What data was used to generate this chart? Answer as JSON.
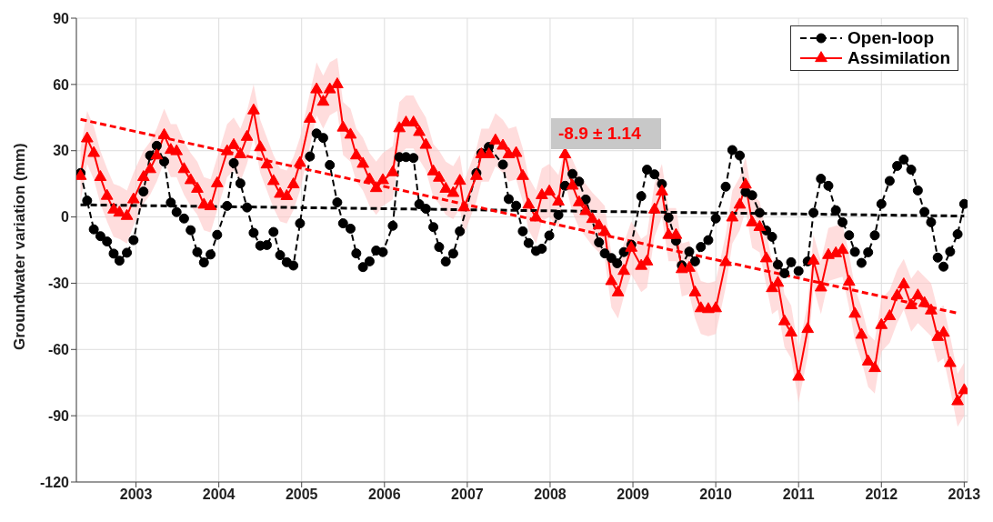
{
  "chart_data": {
    "type": "line",
    "ylabel": "Groundwater variation (mm)",
    "xlim": [
      2002.28,
      2013.04
    ],
    "ylim": [
      -120,
      90
    ],
    "xticks": [
      2003,
      2004,
      2005,
      2006,
      2007,
      2008,
      2009,
      2010,
      2011,
      2012,
      2013
    ],
    "yticks": [
      -120,
      -90,
      -60,
      -30,
      0,
      30,
      60,
      90
    ],
    "grid": true,
    "legend": "top right",
    "annotations": [
      "-8.9 ± 1.14"
    ],
    "series": [
      {
        "name": "Open-loop",
        "color": "#000000",
        "marker": "circle",
        "line_style": "dashed",
        "x": [
          2002.33,
          2002.41,
          2002.49,
          2002.57,
          2002.65,
          2002.73,
          2002.8,
          2002.89,
          2002.97,
          2003.09,
          2003.17,
          2003.25,
          2003.34,
          2003.42,
          2003.49,
          2003.58,
          2003.66,
          2003.74,
          2003.82,
          2003.9,
          2003.98,
          2004.1,
          2004.18,
          2004.26,
          2004.34,
          2004.42,
          2004.5,
          2004.58,
          2004.66,
          2004.74,
          2004.82,
          2004.9,
          2004.98,
          2005.1,
          2005.18,
          2005.26,
          2005.34,
          2005.43,
          2005.5,
          2005.59,
          2005.66,
          2005.74,
          2005.82,
          2005.9,
          2005.98,
          2006.1,
          2006.18,
          2006.26,
          2006.35,
          2006.42,
          2006.5,
          2006.59,
          2006.66,
          2006.74,
          2006.83,
          2006.91,
          2007.11,
          2007.17,
          2007.26,
          2007.43,
          2007.5,
          2007.59,
          2007.67,
          2007.74,
          2007.83,
          2007.9,
          2007.99,
          2008.1,
          2008.18,
          2008.27,
          2008.35,
          2008.43,
          2008.59,
          2008.66,
          2008.74,
          2008.81,
          2008.89,
          2008.98,
          2009.1,
          2009.17,
          2009.26,
          2009.35,
          2009.43,
          2009.52,
          2009.59,
          2009.68,
          2009.75,
          2009.82,
          2009.91,
          2010.0,
          2010.12,
          2010.2,
          2010.29,
          2010.36,
          2010.44,
          2010.53,
          2010.61,
          2010.68,
          2010.75,
          2010.83,
          2010.91,
          2011.0,
          2011.11,
          2011.18,
          2011.27,
          2011.36,
          2011.45,
          2011.53,
          2011.61,
          2011.68,
          2011.76,
          2011.84,
          2011.92,
          2012.0,
          2012.1,
          2012.19,
          2012.27,
          2012.36,
          2012.44,
          2012.52,
          2012.6,
          2012.68,
          2012.75,
          2012.83,
          2012.92,
          2013.0
        ],
        "values": [
          19.9,
          7.4,
          -5.6,
          -8.7,
          -11.1,
          -16.6,
          -19.8,
          -16.2,
          -10.5,
          11.5,
          27.8,
          32.2,
          25.1,
          6.5,
          2.2,
          -0.7,
          -6.0,
          -15.9,
          -20.6,
          -17.0,
          -8.1,
          5.0,
          24.4,
          15.2,
          4.3,
          -7.2,
          -13.0,
          -12.7,
          -6.8,
          -17.3,
          -20.5,
          -22.0,
          -2.9,
          27.4,
          37.8,
          35.8,
          23.5,
          6.6,
          -2.9,
          -5.3,
          -16.5,
          -22.7,
          -20.1,
          -15.2,
          -15.9,
          -4.0,
          27.1,
          27.1,
          26.7,
          5.8,
          3.7,
          -4.6,
          -13.6,
          -20.2,
          -16.6,
          -6.5,
          19.9,
          28.9,
          31.7,
          23.7,
          8.1,
          5.1,
          -6.5,
          -11.8,
          -15.4,
          -14.4,
          -8.4,
          0.9,
          14.1,
          19.5,
          16.0,
          7.9,
          -11.5,
          -16.5,
          -18.6,
          -21.0,
          -15.9,
          -12.6,
          9.4,
          21.4,
          19.3,
          14.9,
          -0.3,
          -10.8,
          -21.9,
          -15.7,
          -20.1,
          -13.6,
          -10.5,
          -0.7,
          13.7,
          30.3,
          27.8,
          11.3,
          9.8,
          1.9,
          -6.1,
          -9.0,
          -21.6,
          -25.5,
          -20.5,
          -24.5,
          -20.1,
          1.9,
          17.3,
          14.1,
          3.0,
          -2.4,
          -8.3,
          -15.8,
          -20.8,
          -16.0,
          -8.3,
          5.9,
          16.3,
          23.1,
          26.0,
          21.4,
          12.0,
          2.3,
          -2.4,
          -18.4,
          -22.5,
          -15.7,
          -7.8,
          5.9
        ]
      },
      {
        "name": "Assimilation",
        "color": "#ff0000",
        "marker": "triangle",
        "line_style": "solid",
        "x": [
          2002.33,
          2002.41,
          2002.49,
          2002.57,
          2002.65,
          2002.73,
          2002.8,
          2002.89,
          2002.97,
          2003.09,
          2003.17,
          2003.25,
          2003.34,
          2003.42,
          2003.49,
          2003.58,
          2003.66,
          2003.74,
          2003.82,
          2003.9,
          2003.98,
          2004.1,
          2004.18,
          2004.26,
          2004.34,
          2004.42,
          2004.5,
          2004.58,
          2004.66,
          2004.74,
          2004.82,
          2004.9,
          2004.98,
          2005.1,
          2005.18,
          2005.26,
          2005.34,
          2005.43,
          2005.5,
          2005.59,
          2005.66,
          2005.74,
          2005.82,
          2005.9,
          2005.98,
          2006.1,
          2006.18,
          2006.26,
          2006.35,
          2006.42,
          2006.5,
          2006.59,
          2006.66,
          2006.74,
          2006.83,
          2006.91,
          2006.96,
          2007.11,
          2007.17,
          2007.26,
          2007.34,
          2007.43,
          2007.5,
          2007.59,
          2007.67,
          2007.74,
          2007.83,
          2007.9,
          2007.99,
          2008.1,
          2008.18,
          2008.27,
          2008.35,
          2008.43,
          2008.51,
          2008.59,
          2008.66,
          2008.74,
          2008.82,
          2008.89,
          2008.98,
          2009.1,
          2009.17,
          2009.26,
          2009.35,
          2009.43,
          2009.52,
          2009.59,
          2009.68,
          2009.75,
          2009.82,
          2009.91,
          2010.0,
          2010.12,
          2010.2,
          2010.29,
          2010.36,
          2010.44,
          2010.53,
          2010.61,
          2010.68,
          2010.75,
          2010.83,
          2010.91,
          2011.0,
          2011.11,
          2011.18,
          2011.27,
          2011.36,
          2011.45,
          2011.53,
          2011.61,
          2011.68,
          2011.76,
          2011.84,
          2011.92,
          2012.0,
          2012.1,
          2012.19,
          2012.27,
          2012.36,
          2012.44,
          2012.52,
          2012.6,
          2012.68,
          2012.75,
          2012.83,
          2012.92,
          2013.0
        ],
        "values": [
          18.5,
          35.5,
          28.9,
          18.0,
          9.5,
          3.3,
          1.9,
          0.4,
          7.9,
          18.0,
          21.6,
          27.8,
          37.0,
          30.3,
          29.7,
          21.6,
          16.6,
          12.7,
          5.5,
          4.8,
          15.2,
          29.7,
          32.5,
          28.3,
          36.2,
          48.2,
          31.5,
          23.7,
          16.2,
          10.4,
          9.4,
          14.7,
          24.4,
          44.4,
          57.7,
          52.1,
          57.7,
          60.0,
          40.4,
          37.2,
          27.8,
          24.0,
          17.0,
          13.0,
          16.6,
          20.2,
          40.1,
          42.7,
          42.7,
          38.4,
          32.6,
          20.6,
          17.7,
          12.7,
          10.8,
          16.3,
          4.3,
          18.5,
          28.3,
          28.3,
          34.6,
          32.2,
          28.3,
          28.9,
          18.5,
          5.5,
          -0.3,
          9.8,
          11.5,
          6.9,
          28.3,
          14.1,
          6.6,
          2.6,
          -1.0,
          -3.9,
          -6.8,
          -29.1,
          -34.2,
          -24.5,
          -14.0,
          -22.2,
          -20.2,
          3.3,
          11.5,
          -8.2,
          -8.2,
          -23.7,
          -23.1,
          -34.2,
          -41.4,
          -41.8,
          -41.4,
          -20.5,
          -0.3,
          5.5,
          14.6,
          -2.5,
          -4.6,
          -18.8,
          -32.3,
          -29.9,
          -47.3,
          -52.4,
          -72.4,
          -50.8,
          -19.8,
          -32.0,
          -17.3,
          -16.5,
          -15.0,
          -29.4,
          -43.9,
          -53.4,
          -65.5,
          -68.5,
          -49.0,
          -45.0,
          -35.6,
          -30.6,
          -40.0,
          -35.6,
          -39.0,
          -42.4,
          -54.4,
          -52.5,
          -66.2,
          -83.5,
          -78.5
        ],
        "upper": [
          31,
          48,
          41,
          30,
          22,
          15,
          14,
          12,
          20,
          30,
          34,
          40,
          49,
          42,
          42,
          34,
          29,
          25,
          18,
          17,
          27,
          42,
          45,
          40,
          48,
          60,
          44,
          36,
          28,
          22,
          21,
          27,
          36,
          56,
          70,
          64,
          70,
          72,
          52,
          49,
          40,
          36,
          29,
          25,
          29,
          32,
          52,
          55,
          55,
          50,
          45,
          33,
          30,
          25,
          23,
          28,
          16,
          31,
          40,
          40,
          47,
          44,
          40,
          41,
          31,
          18,
          12,
          22,
          24,
          19,
          31,
          26,
          19,
          15,
          11,
          8,
          5,
          -17,
          -22,
          -12,
          -2,
          -10,
          -8,
          15,
          24,
          4,
          4,
          -12,
          -11,
          -22,
          -29,
          -30,
          -29,
          -8,
          12,
          18,
          27,
          10,
          7,
          -7,
          -20,
          -18,
          -35,
          -40,
          -60,
          -39,
          -8,
          -20,
          -5,
          -4,
          -3,
          -17,
          -32,
          -41,
          -53,
          -56,
          -37,
          -33,
          -24,
          -19,
          -28,
          -24,
          -27,
          -30,
          -42,
          -40,
          -54,
          -71,
          -66
        ],
        "lower": [
          7,
          24,
          17,
          6,
          -2,
          -9,
          -10,
          -12,
          -4,
          6,
          10,
          16,
          25,
          18,
          18,
          10,
          5,
          1,
          -6,
          -7,
          3,
          18,
          21,
          16,
          24,
          36,
          20,
          12,
          4,
          -2,
          -3,
          3,
          12,
          32,
          46,
          40,
          46,
          48,
          28,
          25,
          16,
          12,
          5,
          1,
          5,
          8,
          28,
          31,
          31,
          26,
          21,
          9,
          6,
          1,
          -1,
          4,
          -8,
          7,
          16,
          16,
          23,
          20,
          16,
          17,
          7,
          -6,
          -12,
          -2,
          0,
          -5,
          16,
          2,
          -5,
          -9,
          -13,
          -16,
          -19,
          -41,
          -46,
          -36,
          -26,
          -34,
          -32,
          -9,
          0,
          -20,
          -20,
          -36,
          -35,
          -46,
          -53,
          -54,
          -53,
          -32,
          -12,
          -6,
          3,
          -14,
          -16,
          -31,
          -44,
          -42,
          -59,
          -64,
          -84,
          -63,
          -32,
          -44,
          -29,
          -28,
          -27,
          -41,
          -56,
          -65,
          -77,
          -80,
          -61,
          -57,
          -48,
          -42,
          -52,
          -48,
          -51,
          -54,
          -66,
          -64,
          -78,
          -95,
          -90
        ]
      },
      {
        "type": "line",
        "color": "#000000",
        "marker": "none",
        "line_style": "dashed",
        "x": [
          2002.33,
          2013.0
        ],
        "values": [
          5.5,
          0.4
        ]
      },
      {
        "type": "line",
        "color": "#ff0000",
        "marker": "none",
        "line_style": "dashed",
        "x": [
          2002.33,
          2012.92
        ],
        "values": [
          44.2,
          -43.6
        ]
      }
    ]
  }
}
